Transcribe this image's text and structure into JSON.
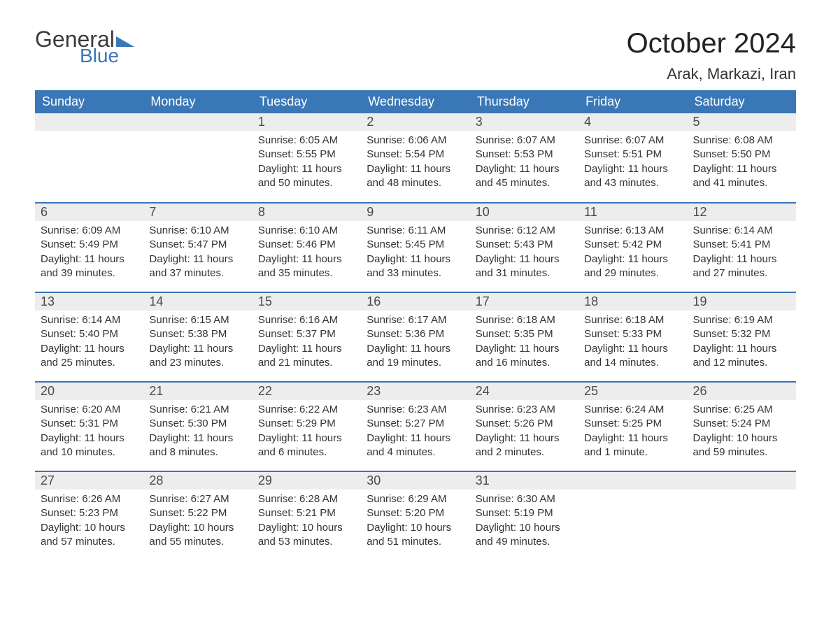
{
  "brand": {
    "word1": "General",
    "word2": "Blue",
    "accent_color": "#3a77b7",
    "text_color": "#3b3b3b"
  },
  "title": "October 2024",
  "location": "Arak, Markazi, Iran",
  "colors": {
    "header_bg": "#3a77b7",
    "header_text": "#ffffff",
    "daynum_bg": "#ededed",
    "daynum_text": "#4a4a4a",
    "body_text": "#333333",
    "separator": "#3a77b7",
    "page_bg": "#ffffff"
  },
  "typography": {
    "title_fontsize": 40,
    "location_fontsize": 22,
    "dow_fontsize": 18,
    "daynum_fontsize": 18,
    "body_fontsize": 15
  },
  "days_of_week": [
    "Sunday",
    "Monday",
    "Tuesday",
    "Wednesday",
    "Thursday",
    "Friday",
    "Saturday"
  ],
  "weeks": [
    [
      null,
      null,
      {
        "n": "1",
        "sunrise": "Sunrise: 6:05 AM",
        "sunset": "Sunset: 5:55 PM",
        "daylight": "Daylight: 11 hours and 50 minutes."
      },
      {
        "n": "2",
        "sunrise": "Sunrise: 6:06 AM",
        "sunset": "Sunset: 5:54 PM",
        "daylight": "Daylight: 11 hours and 48 minutes."
      },
      {
        "n": "3",
        "sunrise": "Sunrise: 6:07 AM",
        "sunset": "Sunset: 5:53 PM",
        "daylight": "Daylight: 11 hours and 45 minutes."
      },
      {
        "n": "4",
        "sunrise": "Sunrise: 6:07 AM",
        "sunset": "Sunset: 5:51 PM",
        "daylight": "Daylight: 11 hours and 43 minutes."
      },
      {
        "n": "5",
        "sunrise": "Sunrise: 6:08 AM",
        "sunset": "Sunset: 5:50 PM",
        "daylight": "Daylight: 11 hours and 41 minutes."
      }
    ],
    [
      {
        "n": "6",
        "sunrise": "Sunrise: 6:09 AM",
        "sunset": "Sunset: 5:49 PM",
        "daylight": "Daylight: 11 hours and 39 minutes."
      },
      {
        "n": "7",
        "sunrise": "Sunrise: 6:10 AM",
        "sunset": "Sunset: 5:47 PM",
        "daylight": "Daylight: 11 hours and 37 minutes."
      },
      {
        "n": "8",
        "sunrise": "Sunrise: 6:10 AM",
        "sunset": "Sunset: 5:46 PM",
        "daylight": "Daylight: 11 hours and 35 minutes."
      },
      {
        "n": "9",
        "sunrise": "Sunrise: 6:11 AM",
        "sunset": "Sunset: 5:45 PM",
        "daylight": "Daylight: 11 hours and 33 minutes."
      },
      {
        "n": "10",
        "sunrise": "Sunrise: 6:12 AM",
        "sunset": "Sunset: 5:43 PM",
        "daylight": "Daylight: 11 hours and 31 minutes."
      },
      {
        "n": "11",
        "sunrise": "Sunrise: 6:13 AM",
        "sunset": "Sunset: 5:42 PM",
        "daylight": "Daylight: 11 hours and 29 minutes."
      },
      {
        "n": "12",
        "sunrise": "Sunrise: 6:14 AM",
        "sunset": "Sunset: 5:41 PM",
        "daylight": "Daylight: 11 hours and 27 minutes."
      }
    ],
    [
      {
        "n": "13",
        "sunrise": "Sunrise: 6:14 AM",
        "sunset": "Sunset: 5:40 PM",
        "daylight": "Daylight: 11 hours and 25 minutes."
      },
      {
        "n": "14",
        "sunrise": "Sunrise: 6:15 AM",
        "sunset": "Sunset: 5:38 PM",
        "daylight": "Daylight: 11 hours and 23 minutes."
      },
      {
        "n": "15",
        "sunrise": "Sunrise: 6:16 AM",
        "sunset": "Sunset: 5:37 PM",
        "daylight": "Daylight: 11 hours and 21 minutes."
      },
      {
        "n": "16",
        "sunrise": "Sunrise: 6:17 AM",
        "sunset": "Sunset: 5:36 PM",
        "daylight": "Daylight: 11 hours and 19 minutes."
      },
      {
        "n": "17",
        "sunrise": "Sunrise: 6:18 AM",
        "sunset": "Sunset: 5:35 PM",
        "daylight": "Daylight: 11 hours and 16 minutes."
      },
      {
        "n": "18",
        "sunrise": "Sunrise: 6:18 AM",
        "sunset": "Sunset: 5:33 PM",
        "daylight": "Daylight: 11 hours and 14 minutes."
      },
      {
        "n": "19",
        "sunrise": "Sunrise: 6:19 AM",
        "sunset": "Sunset: 5:32 PM",
        "daylight": "Daylight: 11 hours and 12 minutes."
      }
    ],
    [
      {
        "n": "20",
        "sunrise": "Sunrise: 6:20 AM",
        "sunset": "Sunset: 5:31 PM",
        "daylight": "Daylight: 11 hours and 10 minutes."
      },
      {
        "n": "21",
        "sunrise": "Sunrise: 6:21 AM",
        "sunset": "Sunset: 5:30 PM",
        "daylight": "Daylight: 11 hours and 8 minutes."
      },
      {
        "n": "22",
        "sunrise": "Sunrise: 6:22 AM",
        "sunset": "Sunset: 5:29 PM",
        "daylight": "Daylight: 11 hours and 6 minutes."
      },
      {
        "n": "23",
        "sunrise": "Sunrise: 6:23 AM",
        "sunset": "Sunset: 5:27 PM",
        "daylight": "Daylight: 11 hours and 4 minutes."
      },
      {
        "n": "24",
        "sunrise": "Sunrise: 6:23 AM",
        "sunset": "Sunset: 5:26 PM",
        "daylight": "Daylight: 11 hours and 2 minutes."
      },
      {
        "n": "25",
        "sunrise": "Sunrise: 6:24 AM",
        "sunset": "Sunset: 5:25 PM",
        "daylight": "Daylight: 11 hours and 1 minute."
      },
      {
        "n": "26",
        "sunrise": "Sunrise: 6:25 AM",
        "sunset": "Sunset: 5:24 PM",
        "daylight": "Daylight: 10 hours and 59 minutes."
      }
    ],
    [
      {
        "n": "27",
        "sunrise": "Sunrise: 6:26 AM",
        "sunset": "Sunset: 5:23 PM",
        "daylight": "Daylight: 10 hours and 57 minutes."
      },
      {
        "n": "28",
        "sunrise": "Sunrise: 6:27 AM",
        "sunset": "Sunset: 5:22 PM",
        "daylight": "Daylight: 10 hours and 55 minutes."
      },
      {
        "n": "29",
        "sunrise": "Sunrise: 6:28 AM",
        "sunset": "Sunset: 5:21 PM",
        "daylight": "Daylight: 10 hours and 53 minutes."
      },
      {
        "n": "30",
        "sunrise": "Sunrise: 6:29 AM",
        "sunset": "Sunset: 5:20 PM",
        "daylight": "Daylight: 10 hours and 51 minutes."
      },
      {
        "n": "31",
        "sunrise": "Sunrise: 6:30 AM",
        "sunset": "Sunset: 5:19 PM",
        "daylight": "Daylight: 10 hours and 49 minutes."
      },
      null,
      null
    ]
  ]
}
